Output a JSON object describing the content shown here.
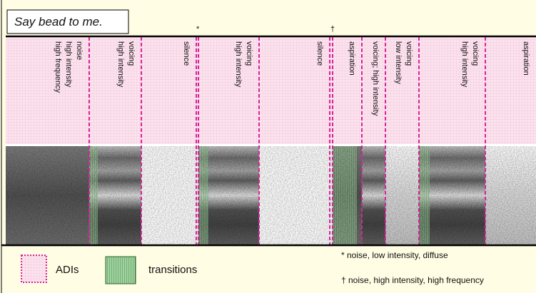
{
  "title": "Say bead to me.",
  "markers": [
    "*",
    "†"
  ],
  "segments": [
    {
      "labels": [
        "noise",
        "high intensity",
        "high frequency"
      ]
    },
    {
      "labels": [
        "voicing",
        "high intensity"
      ]
    },
    {
      "labels": [
        "silence"
      ]
    },
    {
      "labels": [
        "voicing",
        "high intensity"
      ]
    },
    {
      "labels": [
        "silence"
      ]
    },
    {
      "labels": [
        "aspiration"
      ]
    },
    {
      "labels": [
        "voicing; high intensity"
      ]
    },
    {
      "labels": [
        "voicing",
        "low intensity"
      ]
    },
    {
      "labels": [
        "voicing",
        "high intensity"
      ]
    },
    {
      "labels": [
        "aspiration"
      ]
    }
  ],
  "legend": {
    "adis": "ADIs",
    "transitions": "transitions",
    "notes": [
      "* noise, low intensity, diffuse",
      "† noise, high intensity, high frequency"
    ]
  }
}
